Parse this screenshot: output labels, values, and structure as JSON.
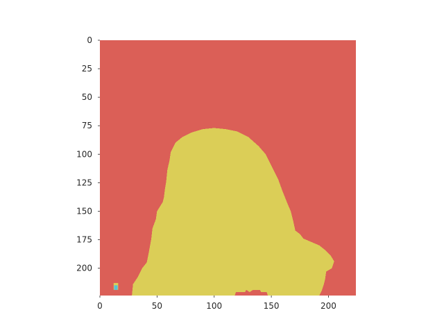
{
  "chart_data": {
    "type": "heatmap",
    "title": "",
    "xlabel": "",
    "ylabel": "",
    "xlim": [
      0,
      224
    ],
    "ylim": [
      224,
      0
    ],
    "xticks": [
      0,
      50,
      100,
      150,
      200
    ],
    "yticks": [
      0,
      25,
      50,
      75,
      100,
      125,
      150,
      175,
      200
    ],
    "grid": false,
    "image_size": [
      224,
      224
    ],
    "description_of_regions": [
      {
        "label_class": 0,
        "color": "#db5f57"
      },
      {
        "label_class": 1,
        "color": "#dbce57"
      },
      {
        "label_class": 2,
        "color": "#57c1db"
      }
    ],
    "region_1_outline": [
      [
        28,
        224
      ],
      [
        29,
        214
      ],
      [
        33,
        208
      ],
      [
        37,
        200
      ],
      [
        41,
        195
      ],
      [
        42,
        190
      ],
      [
        43,
        185
      ],
      [
        45,
        174
      ],
      [
        46,
        165
      ],
      [
        49,
        157
      ],
      [
        50,
        150
      ],
      [
        55,
        142
      ],
      [
        56,
        138
      ],
      [
        57,
        130
      ],
      [
        58,
        124
      ],
      [
        59,
        114
      ],
      [
        61,
        105
      ],
      [
        62,
        98
      ],
      [
        66,
        90
      ],
      [
        72,
        85
      ],
      [
        80,
        81
      ],
      [
        90,
        78
      ],
      [
        100,
        77
      ],
      [
        110,
        78
      ],
      [
        120,
        80
      ],
      [
        130,
        85
      ],
      [
        139,
        93
      ],
      [
        145,
        100
      ],
      [
        150,
        110
      ],
      [
        156,
        122
      ],
      [
        160,
        133
      ],
      [
        164,
        143
      ],
      [
        167,
        150
      ],
      [
        169,
        158
      ],
      [
        171,
        167
      ],
      [
        175,
        170
      ],
      [
        178,
        174
      ],
      [
        185,
        177
      ],
      [
        192,
        180
      ],
      [
        197,
        184
      ],
      [
        202,
        189
      ],
      [
        205,
        194
      ],
      [
        203,
        200
      ],
      [
        198,
        203
      ],
      [
        197,
        210
      ],
      [
        196,
        214
      ],
      [
        194,
        220
      ],
      [
        192,
        224
      ],
      [
        147,
        224
      ],
      [
        146,
        221
      ],
      [
        141,
        221
      ],
      [
        140,
        219
      ],
      [
        134,
        219
      ],
      [
        131,
        221
      ],
      [
        128,
        219
      ],
      [
        127,
        221
      ],
      [
        119,
        221
      ],
      [
        118,
        224
      ]
    ],
    "region_2_blob": {
      "x": 14,
      "y": 216
    }
  }
}
